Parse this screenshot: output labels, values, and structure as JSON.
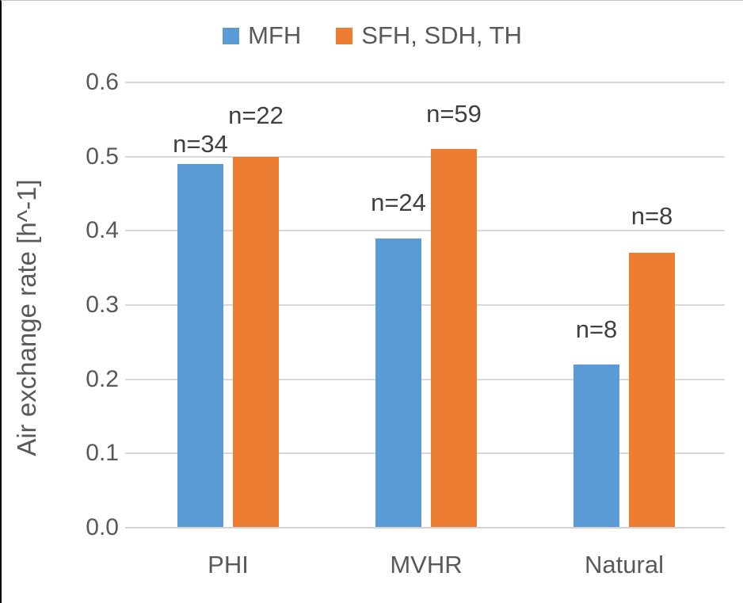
{
  "legend": {
    "items": [
      {
        "label": "MFH",
        "color": "#5B9BD5"
      },
      {
        "label": "SFH, SDH, TH",
        "color": "#ED7D31"
      }
    ]
  },
  "chart_data": {
    "type": "bar",
    "title": "",
    "categories": [
      "PHI",
      "MVHR",
      "Natural"
    ],
    "series": [
      {
        "name": "MFH",
        "color": "#5B9BD5",
        "values": [
          0.49,
          0.39,
          0.22
        ],
        "point_labels": [
          "n=34",
          "n=24",
          "n=8"
        ]
      },
      {
        "name": "SFH, SDH, TH",
        "color": "#ED7D31",
        "values": [
          0.5,
          0.51,
          0.37
        ],
        "point_labels": [
          "n=22",
          "n=59",
          "n=8"
        ]
      }
    ],
    "xlabel": "",
    "ylabel": "Air exchange rate [h^-1]",
    "ylim": [
      0.0,
      0.6
    ],
    "yticks": [
      0.0,
      0.1,
      0.2,
      0.3,
      0.4,
      0.5,
      0.6
    ],
    "ytick_labels": [
      "0.0",
      "0.1",
      "0.2",
      "0.3",
      "0.4",
      "0.5",
      "0.6"
    ],
    "grid": true,
    "legend_position": "top-center",
    "gridline_color": "#D9D9D9",
    "axis_line_color": "#D2D2D2",
    "tick_text_color": "#595959",
    "point_label_color": "#404040",
    "point_label_gaps": [
      [
        8,
        28,
        27
      ],
      [
        35,
        27,
        29
      ]
    ]
  }
}
